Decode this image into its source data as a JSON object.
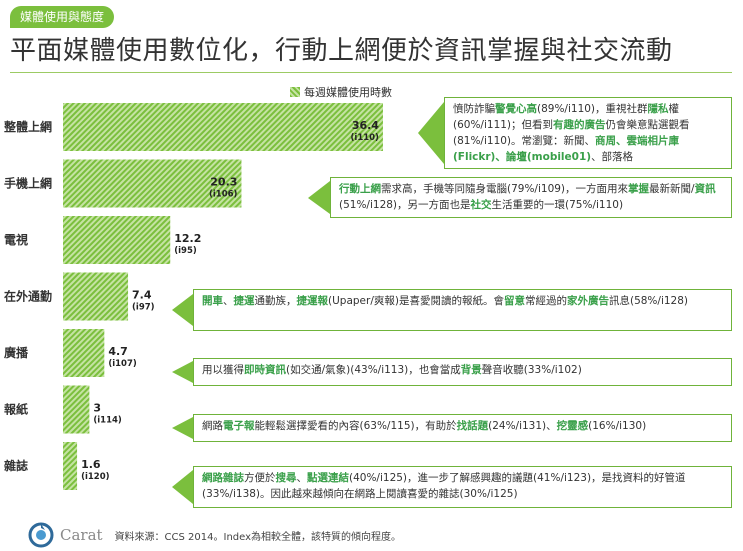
{
  "tag": "媒體使用與態度",
  "title": "平面媒體使用數位化，行動上網便於資訊掌握與社交流動",
  "source": "資料來源：CCS 2014。Index為相較全體，該特質的傾向程度。",
  "logo_text": "Carat",
  "colors": {
    "accent": "#7bbf3d",
    "highlight": "#3aa04a",
    "border": "#6fb33a"
  },
  "chart_data": {
    "type": "bar",
    "orientation": "horizontal",
    "title": "",
    "legend": "每週媒體使用時數",
    "legend_position": "top",
    "xlim": [
      0,
      40
    ],
    "grid": false,
    "categories": [
      "整體上網",
      "手機上網",
      "電視",
      "在外通勤",
      "廣播",
      "報紙",
      "雜誌"
    ],
    "values": [
      36.4,
      20.3,
      12.2,
      7.4,
      4.7,
      3,
      1.6
    ],
    "value_labels": [
      "36.4",
      "20.3",
      "12.2",
      "7.4",
      "4.7",
      "3",
      "1.6"
    ],
    "index_labels": [
      "(i110)",
      "(i106)",
      "(i95)",
      "(i97)",
      "(i107)",
      "(i114)",
      "(i120)"
    ]
  },
  "callouts": [
    {
      "id": "internet",
      "segments": [
        {
          "t": "憤防詐騙",
          "h": false
        },
        {
          "t": "警覺心高",
          "h": true
        },
        {
          "t": "(89%/i110)，重視社群",
          "h": false
        },
        {
          "t": "隱私",
          "h": true
        },
        {
          "t": "權(60%/i111)；但看到",
          "h": false
        },
        {
          "t": "有趣的廣告",
          "h": true
        },
        {
          "t": "仍會樂意點選觀看(81%/i110)。常瀏覽：新聞、",
          "h": false
        },
        {
          "t": "商周",
          "h": true
        },
        {
          "t": "、雲端相片庫(Flickr)",
          "h": true
        },
        {
          "t": "、論壇(mobile01)",
          "h": true
        },
        {
          "t": "、部落格",
          "h": false
        }
      ]
    },
    {
      "id": "mobile",
      "segments": [
        {
          "t": "行動上網",
          "h": true
        },
        {
          "t": "需求高，手機等同隨身電腦(79%/i109)，一方面用來",
          "h": false
        },
        {
          "t": "掌握",
          "h": true
        },
        {
          "t": "最新新聞/",
          "h": false
        },
        {
          "t": "資訊",
          "h": true
        },
        {
          "t": "(51%/i128)，另一方面也是",
          "h": false
        },
        {
          "t": "社交",
          "h": true
        },
        {
          "t": "生活重要的一環(75%/i110)",
          "h": false
        }
      ]
    },
    {
      "id": "commute",
      "segments": [
        {
          "t": "開車",
          "h": true
        },
        {
          "t": "、",
          "h": false
        },
        {
          "t": "捷運",
          "h": true
        },
        {
          "t": "通勤族，",
          "h": false
        },
        {
          "t": "捷運報",
          "h": true
        },
        {
          "t": "(Upaper/爽報)是喜愛閱讀的報紙。會",
          "h": false
        },
        {
          "t": "留意",
          "h": true
        },
        {
          "t": "常經過的",
          "h": false
        },
        {
          "t": "家外廣告",
          "h": true
        },
        {
          "t": "訊息(58%/i128)",
          "h": false
        }
      ]
    },
    {
      "id": "radio",
      "segments": [
        {
          "t": "用以獲得",
          "h": false
        },
        {
          "t": "即時資訊",
          "h": true
        },
        {
          "t": "(如交通/氣象)(43%/i113)，也會當成",
          "h": false
        },
        {
          "t": "背景",
          "h": true
        },
        {
          "t": "聲音收聽(33%/i102)",
          "h": false
        }
      ]
    },
    {
      "id": "newspaper",
      "segments": [
        {
          "t": "網路",
          "h": false
        },
        {
          "t": "電子報",
          "h": true
        },
        {
          "t": "能輕鬆選擇愛看的內容(63%/115)，有助於",
          "h": false
        },
        {
          "t": "找話題",
          "h": true
        },
        {
          "t": "(24%/i131)、",
          "h": false
        },
        {
          "t": "挖靈感",
          "h": true
        },
        {
          "t": "(16%/i130)",
          "h": false
        }
      ]
    },
    {
      "id": "magazine",
      "segments": [
        {
          "t": "網路雜誌",
          "h": true
        },
        {
          "t": "方便於",
          "h": false
        },
        {
          "t": "搜尋",
          "h": true
        },
        {
          "t": "、",
          "h": false
        },
        {
          "t": "點選連結",
          "h": true
        },
        {
          "t": "(40%/i125)，進一步了解感興趣的議題(41%/i123)，是找資料的好管道(33%/i138)。因此越來越傾向在網路上閱讀喜愛的雜誌(30%/i125)",
          "h": false
        }
      ]
    }
  ]
}
